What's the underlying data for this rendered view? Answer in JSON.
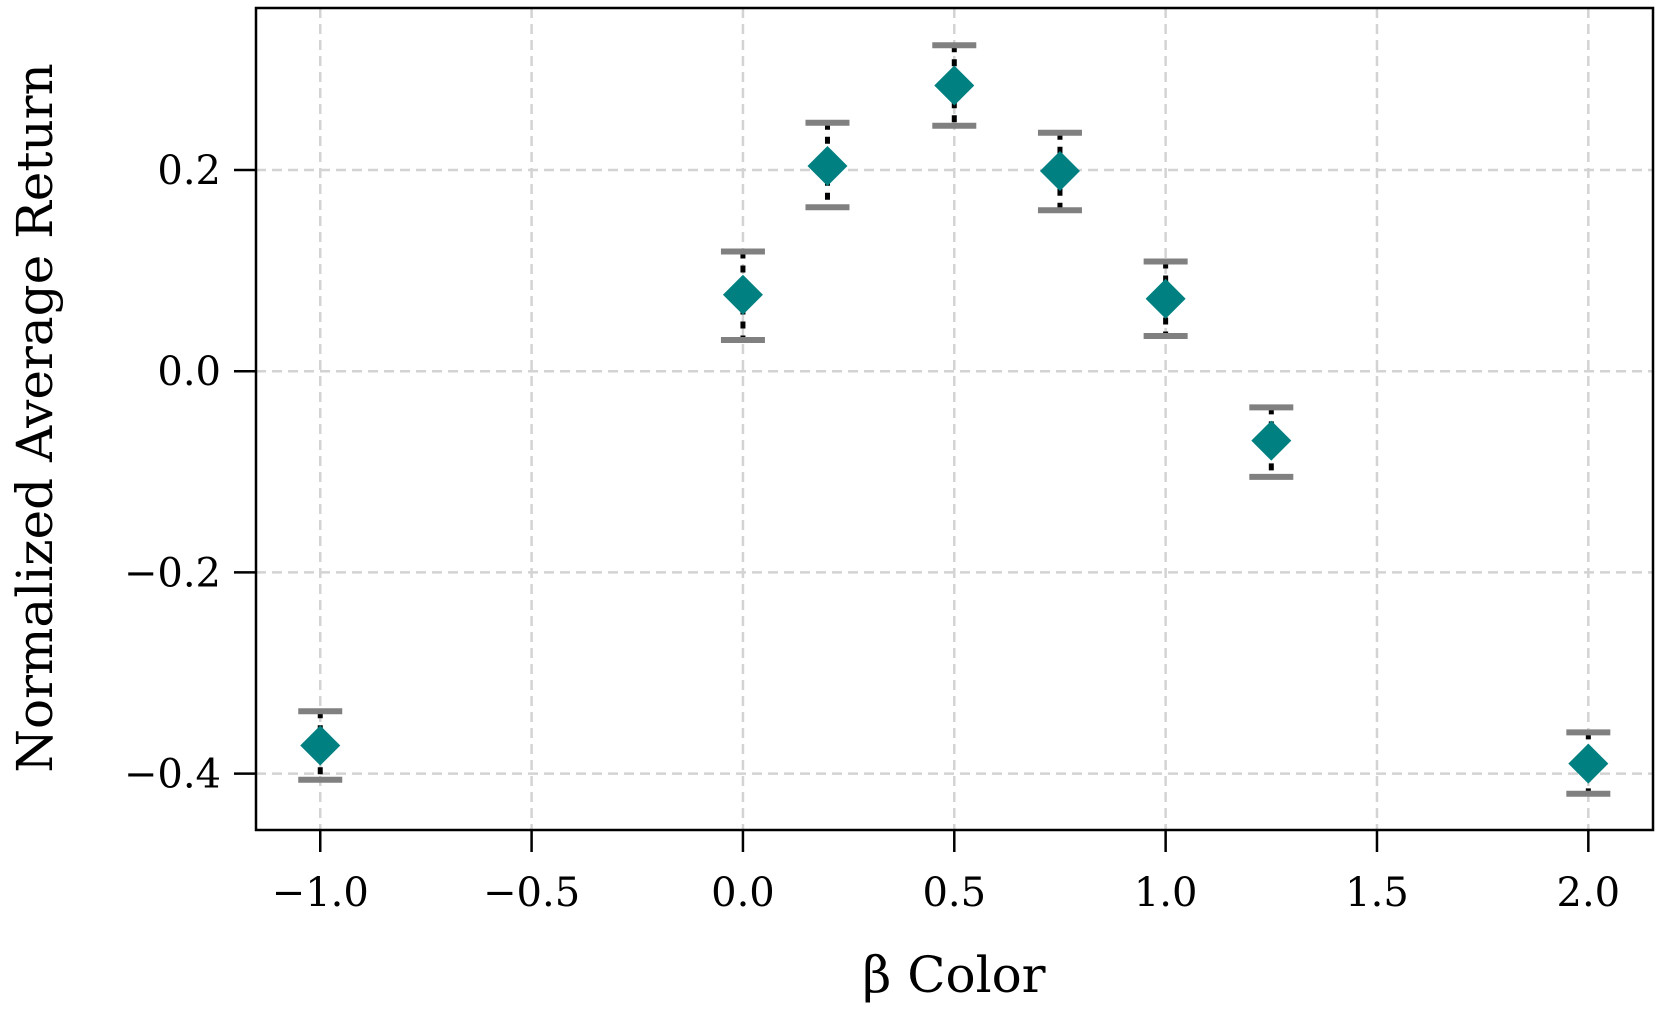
{
  "chart_data": {
    "type": "scatter",
    "title": "",
    "xlabel": "β Color",
    "ylabel": "Normalized Average Return",
    "xlim": [
      -1.152,
      2.153
    ],
    "ylim": [
      -0.456,
      0.361
    ],
    "xticks": [
      -1.0,
      -0.5,
      0.0,
      0.5,
      1.0,
      1.5,
      2.0
    ],
    "xtick_labels": [
      "−1.0",
      "−0.5",
      "0.0",
      "0.5",
      "1.0",
      "1.5",
      "2.0"
    ],
    "yticks": [
      -0.4,
      -0.2,
      0.0,
      0.2
    ],
    "ytick_labels": [
      "−0.4",
      "−0.2",
      "0.0",
      "0.2"
    ],
    "grid": true,
    "marker": "diamond",
    "marker_color": "#008080",
    "errorbar_line_color": "#000000",
    "errorbar_cap_color": "#808080",
    "points": [
      {
        "x": -1.0,
        "y": -0.372,
        "lower": -0.406,
        "upper": -0.338
      },
      {
        "x": 0.0,
        "y": 0.076,
        "lower": 0.031,
        "upper": 0.119
      },
      {
        "x": 0.2,
        "y": 0.204,
        "lower": 0.163,
        "upper": 0.247
      },
      {
        "x": 0.5,
        "y": 0.284,
        "lower": 0.244,
        "upper": 0.324
      },
      {
        "x": 0.75,
        "y": 0.199,
        "lower": 0.16,
        "upper": 0.237
      },
      {
        "x": 1.0,
        "y": 0.072,
        "lower": 0.035,
        "upper": 0.109
      },
      {
        "x": 1.25,
        "y": -0.069,
        "lower": -0.105,
        "upper": -0.036
      },
      {
        "x": 2.0,
        "y": -0.39,
        "lower": -0.42,
        "upper": -0.359
      }
    ]
  }
}
